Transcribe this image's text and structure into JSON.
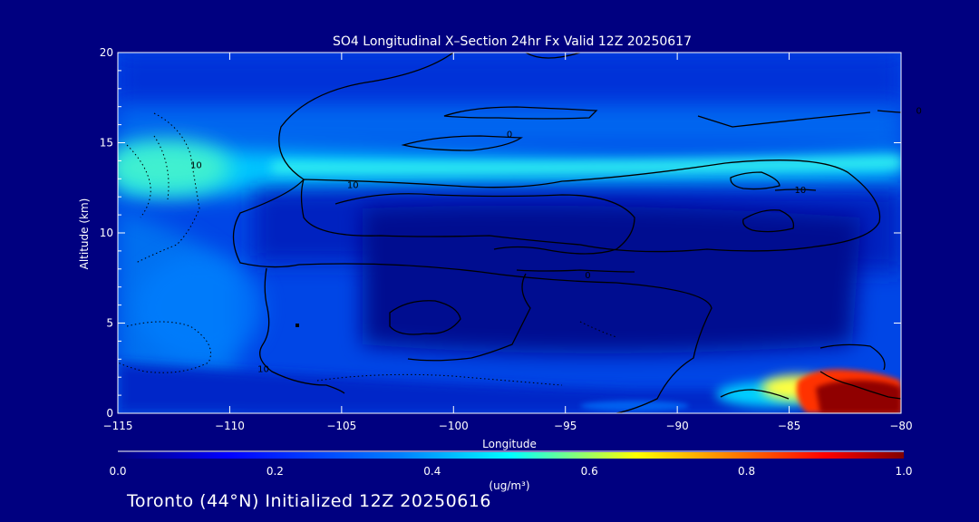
{
  "chart_data": {
    "type": "heatmap",
    "title": "SO4 Longitudinal X–Section 24hr  Fx Valid 12Z 20250617",
    "xlabel": "Longitude",
    "ylabel": "Altitude (km)",
    "xlim": [
      -115,
      -80
    ],
    "ylim": [
      0,
      20
    ],
    "x_ticks": [
      -115,
      -110,
      -105,
      -100,
      -95,
      -90,
      -85,
      -80
    ],
    "x_tick_labels": [
      "−115",
      "−110",
      "−105",
      "−100",
      "−95",
      "−90",
      "−85",
      "−80"
    ],
    "y_ticks": [
      0,
      5,
      10,
      15,
      20
    ],
    "y_tick_labels": [
      "0",
      "5",
      "10",
      "15",
      "20"
    ],
    "colorbar": {
      "label": "(ug/m³)",
      "range": [
        0,
        1.0
      ],
      "ticks": [
        0.0,
        0.2,
        0.4,
        0.6,
        0.8,
        1.0
      ],
      "tick_labels": [
        "0.0",
        "0.2",
        "0.4",
        "0.6",
        "0.8",
        "1.0"
      ],
      "colors": [
        "#000080",
        "#0000ff",
        "#0080ff",
        "#00ffff",
        "#ffff00",
        "#ff8000",
        "#ff0000",
        "#800000"
      ]
    },
    "grid": false,
    "contour_labels": [
      {
        "text": "10",
        "lon": -111.5,
        "alt": 13.8
      },
      {
        "text": "10",
        "lon": -108.5,
        "alt": 2.5
      },
      {
        "text": "10",
        "lon": -104.5,
        "alt": 12.7
      },
      {
        "text": "0",
        "lon": -97.5,
        "alt": 15.5
      },
      {
        "text": "0",
        "lon": -79.2,
        "alt": 16.8
      },
      {
        "text": "10",
        "lon": -84.5,
        "alt": 12.4
      },
      {
        "text": "0",
        "lon": -94.0,
        "alt": 7.7
      }
    ],
    "concentration_features": [
      {
        "name": "stratospheric layer",
        "lon_range": [
          -115,
          -80
        ],
        "alt_range": [
          13,
          15.5
        ],
        "value": 0.3
      },
      {
        "name": "western upper plume",
        "lon_range": [
          -115,
          -109
        ],
        "alt_range": [
          12,
          16
        ],
        "value": 0.45
      },
      {
        "name": "surface plume",
        "lon_range": [
          -88,
          -80
        ],
        "alt_range": [
          0,
          2.5
        ],
        "value": 1.0
      }
    ]
  },
  "footer": "Toronto (44°N) Initialized 12Z 20250616"
}
